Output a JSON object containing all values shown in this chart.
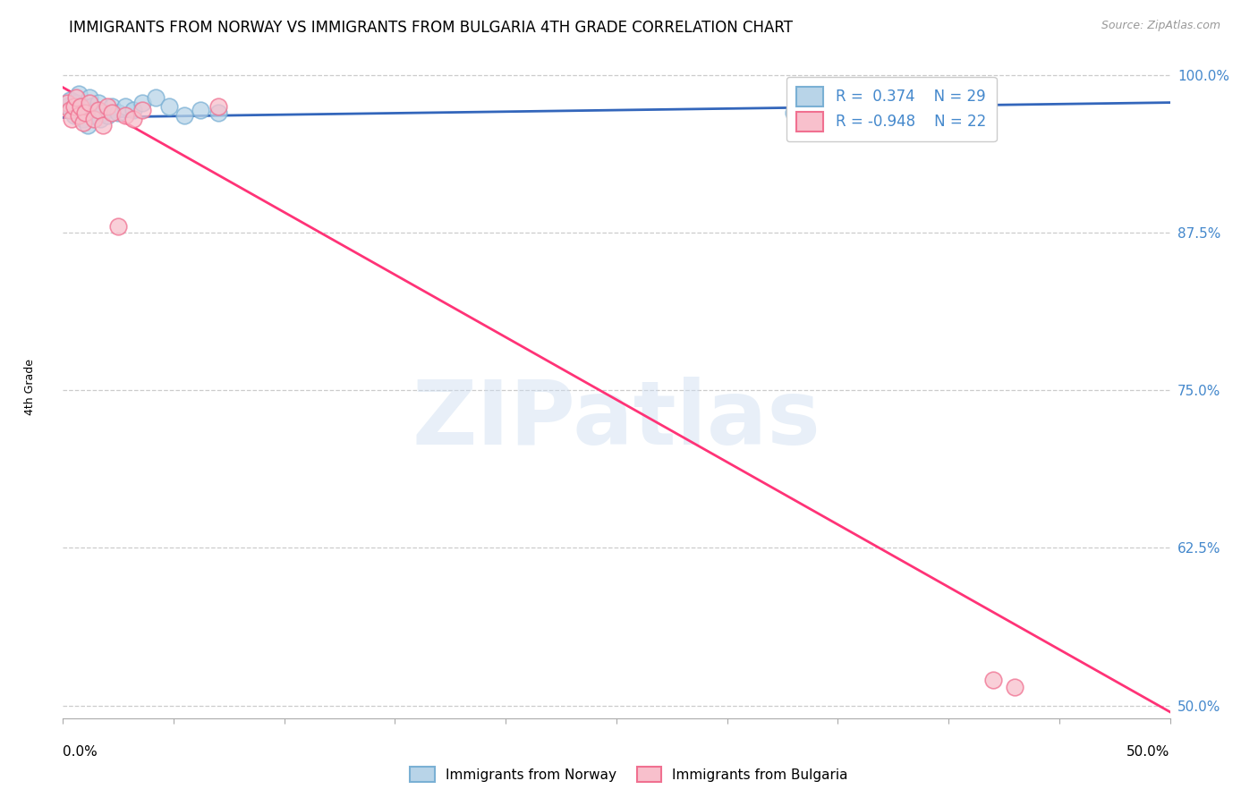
{
  "title": "IMMIGRANTS FROM NORWAY VS IMMIGRANTS FROM BULGARIA 4TH GRADE CORRELATION CHART",
  "source": "Source: ZipAtlas.com",
  "ylabel": "4th Grade",
  "xlim": [
    0.0,
    50.0
  ],
  "ylim": [
    49.0,
    101.5
  ],
  "yticks": [
    50.0,
    62.5,
    75.0,
    87.5,
    100.0
  ],
  "ytick_labels": [
    "50.0%",
    "62.5%",
    "75.0%",
    "87.5%",
    "100.0%"
  ],
  "xtick_positions": [
    0,
    5,
    10,
    15,
    20,
    25,
    30,
    35,
    40,
    45,
    50
  ],
  "norway_color": "#7ab0d4",
  "norway_color_light": "#b8d4e8",
  "bulgaria_color": "#f07090",
  "bulgaria_color_light": "#f8c0cc",
  "norway_line_color": "#3366bb",
  "bulgaria_line_color": "#ff3377",
  "watermark_text": "ZIPatlas",
  "legend_R_norway": "0.374",
  "legend_N_norway": "29",
  "legend_R_bulgaria": "-0.948",
  "legend_N_bulgaria": "22",
  "norway_dots_x": [
    0.2,
    0.3,
    0.4,
    0.5,
    0.6,
    0.7,
    0.8,
    0.9,
    1.0,
    1.1,
    1.2,
    1.3,
    1.4,
    1.5,
    1.6,
    1.7,
    1.8,
    2.0,
    2.2,
    2.5,
    2.8,
    3.2,
    3.6,
    4.2,
    4.8,
    5.5,
    6.2,
    7.0,
    33.0
  ],
  "norway_dots_y": [
    97.5,
    98.0,
    97.2,
    96.8,
    97.8,
    98.5,
    97.0,
    96.5,
    97.5,
    96.0,
    98.2,
    97.5,
    96.8,
    97.2,
    97.8,
    96.5,
    97.0,
    96.8,
    97.5,
    97.0,
    97.5,
    97.2,
    97.8,
    98.2,
    97.5,
    96.8,
    97.2,
    97.0,
    97.0
  ],
  "bulgaria_dots_x": [
    0.2,
    0.3,
    0.4,
    0.5,
    0.6,
    0.7,
    0.8,
    0.9,
    1.0,
    1.2,
    1.4,
    1.6,
    1.8,
    2.0,
    2.2,
    2.5,
    2.8,
    3.2,
    3.6,
    7.0,
    42.0,
    43.0
  ],
  "bulgaria_dots_y": [
    97.8,
    97.2,
    96.5,
    97.5,
    98.2,
    96.8,
    97.5,
    96.2,
    97.0,
    97.8,
    96.5,
    97.2,
    96.0,
    97.5,
    97.0,
    88.0,
    96.8,
    96.5,
    97.2,
    97.5,
    52.0,
    51.5
  ],
  "norway_line_x": [
    0.0,
    50.0
  ],
  "norway_line_y": [
    96.6,
    97.8
  ],
  "bulgaria_line_x": [
    0.0,
    50.0
  ],
  "bulgaria_line_y": [
    99.0,
    49.5
  ],
  "dashed_line_y": 100.0,
  "grid_color": "#cccccc",
  "background_color": "#ffffff",
  "right_axis_color": "#4488cc",
  "title_fontsize": 12,
  "source_fontsize": 9,
  "ylabel_fontsize": 9,
  "legend_fontsize": 12,
  "dot_size": 180
}
